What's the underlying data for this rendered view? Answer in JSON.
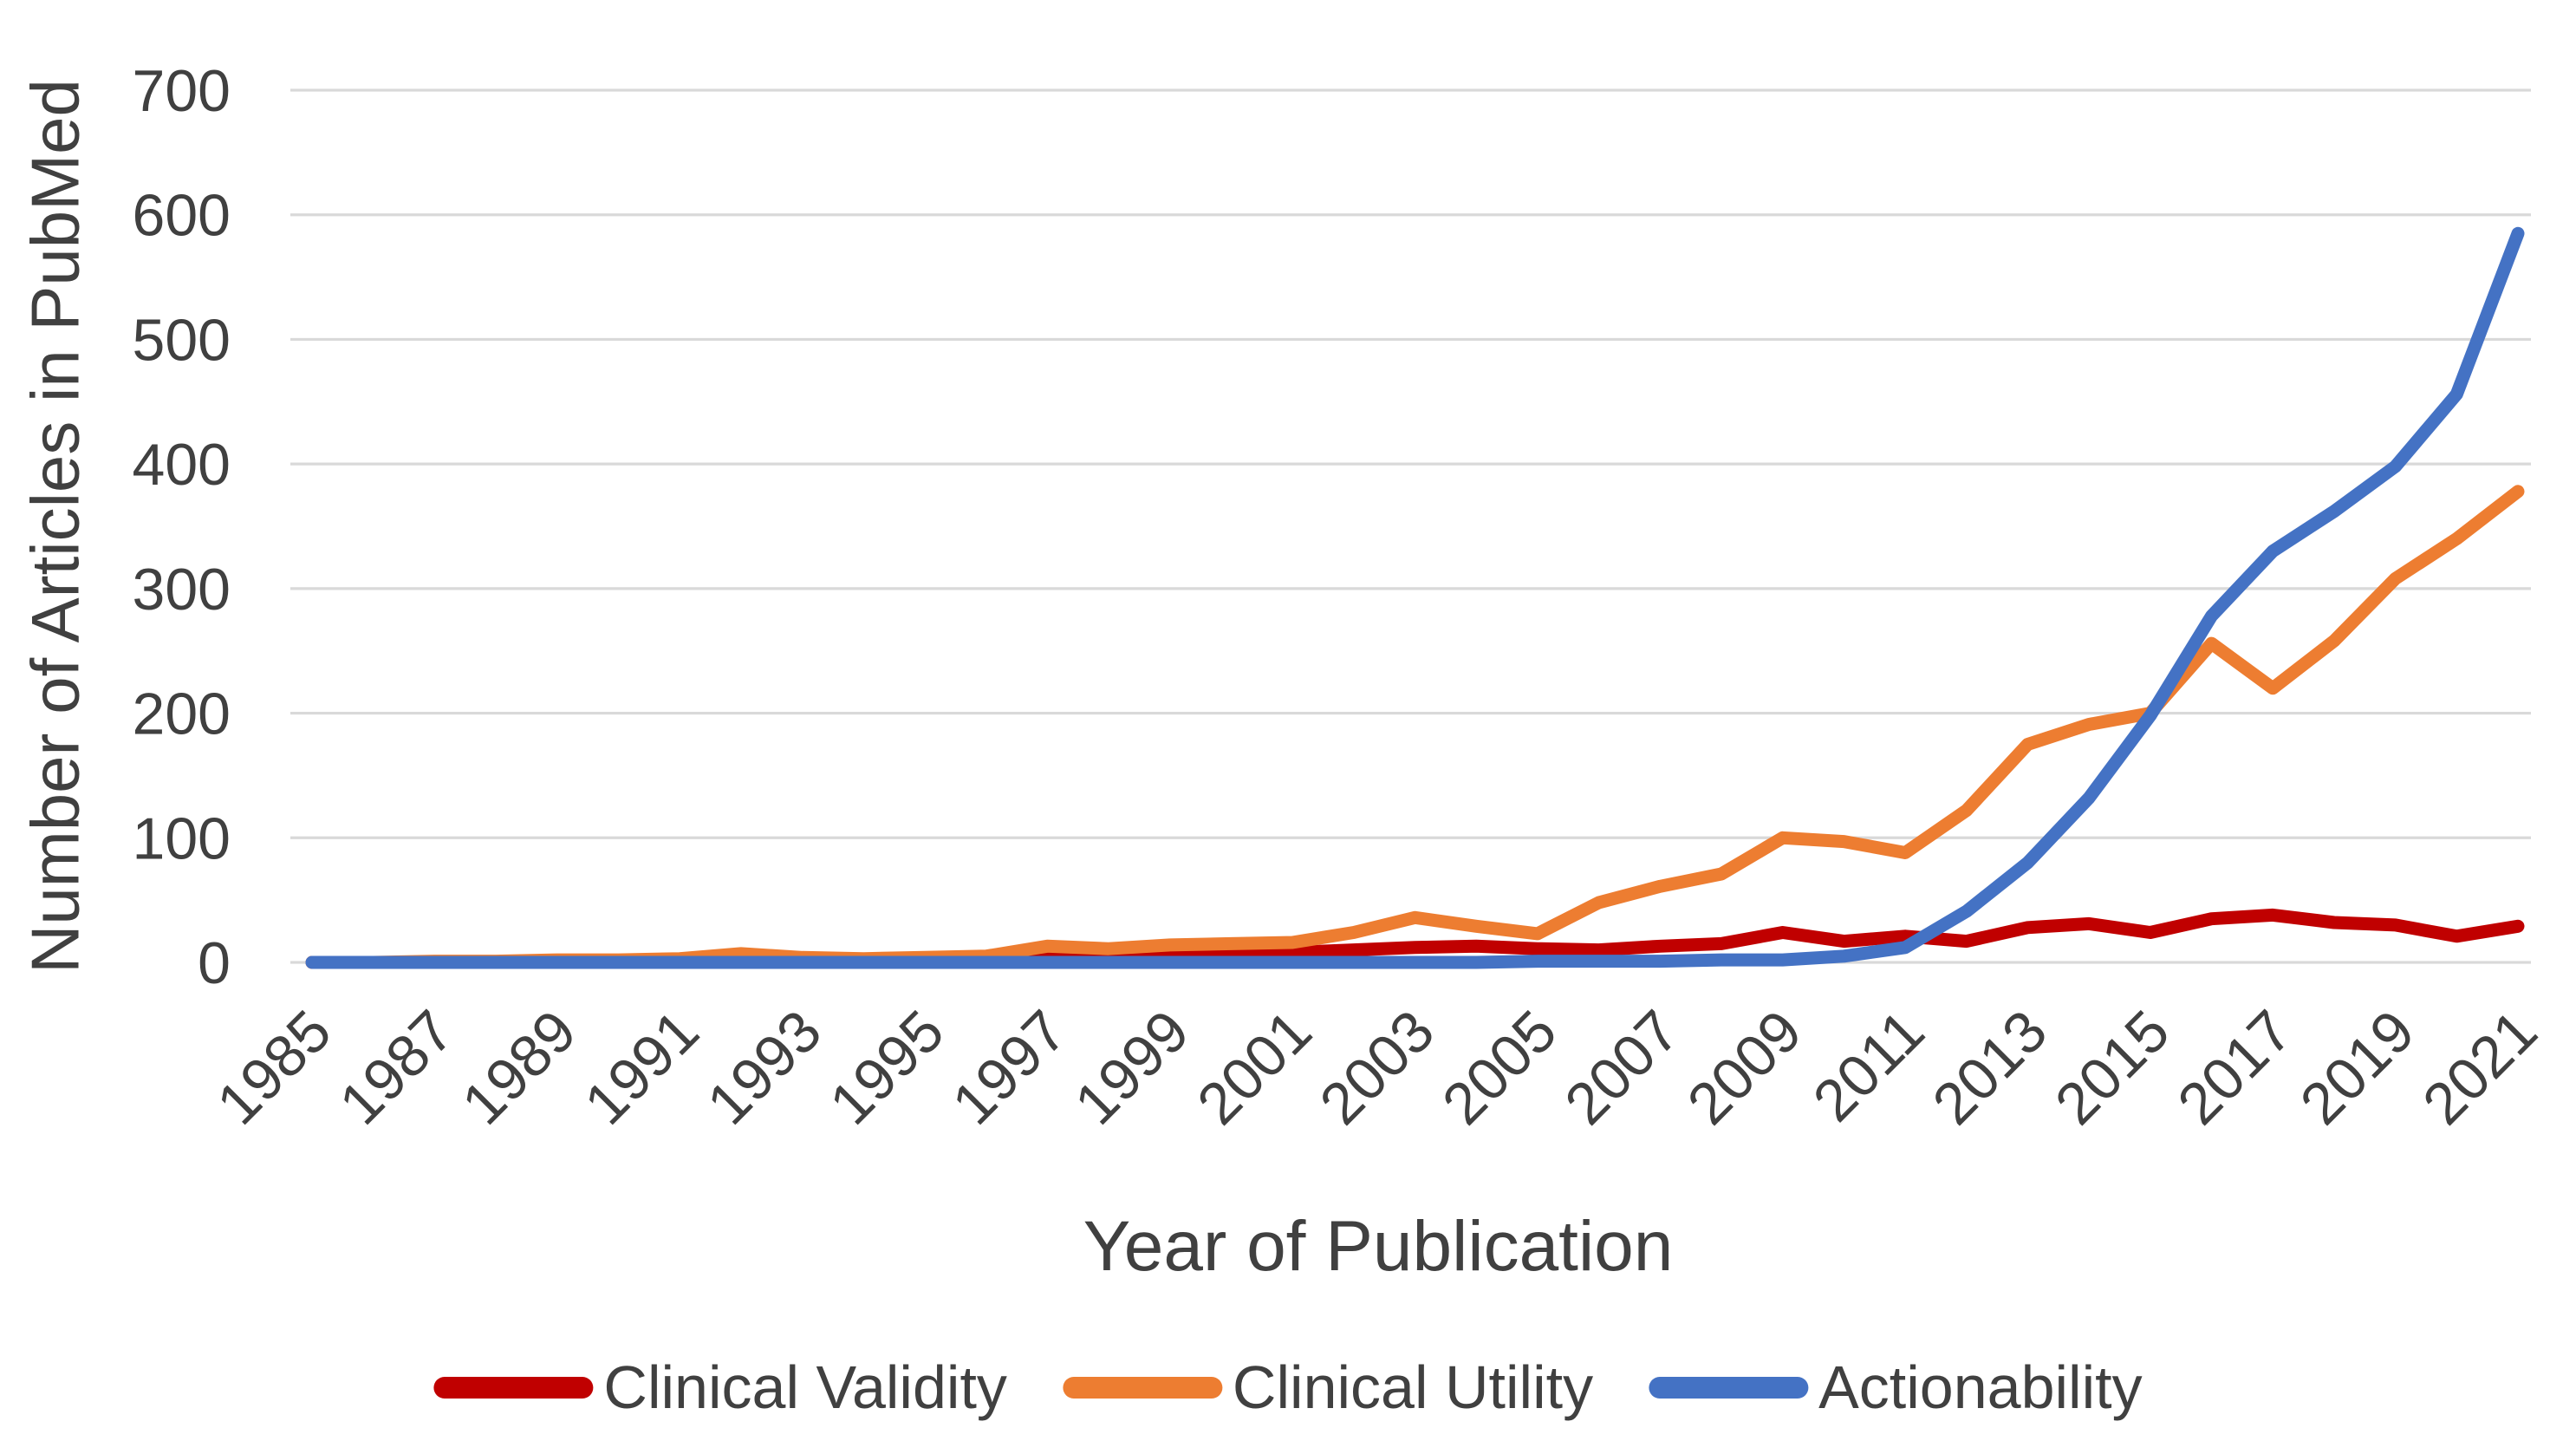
{
  "chart_data": {
    "type": "line",
    "title": "",
    "xlabel": "Year of Publication",
    "ylabel": "Number of Articles in PubMed",
    "x": [
      1985,
      1986,
      1987,
      1988,
      1989,
      1990,
      1991,
      1992,
      1993,
      1994,
      1995,
      1996,
      1997,
      1998,
      1999,
      2000,
      2001,
      2002,
      2003,
      2004,
      2005,
      2006,
      2007,
      2008,
      2009,
      2010,
      2011,
      2012,
      2013,
      2014,
      2015,
      2016,
      2017,
      2018,
      2019,
      2020,
      2021
    ],
    "x_tick_labels": [
      "1985",
      "1987",
      "1989",
      "1991",
      "1993",
      "1995",
      "1997",
      "1999",
      "2001",
      "2003",
      "2005",
      "2007",
      "2009",
      "2011",
      "2013",
      "2015",
      "2017",
      "2019",
      "2021"
    ],
    "y_ticks": [
      0,
      100,
      200,
      300,
      400,
      500,
      600,
      700
    ],
    "ylim": [
      0,
      700
    ],
    "grid": "horizontal-only",
    "legend_position": "bottom-center",
    "gridline_color": "#d9d9d9",
    "tick_label_color": "#404040",
    "series": [
      {
        "name": "Clinical Validity",
        "color": "#c00000",
        "values": [
          0,
          0,
          0,
          0,
          1,
          1,
          1,
          1,
          1,
          1,
          2,
          2,
          3,
          3,
          4,
          5,
          8,
          10,
          12,
          13,
          11,
          10,
          13,
          15,
          24,
          17,
          21,
          17,
          28,
          31,
          24,
          35,
          38,
          32,
          30,
          21,
          29
        ]
      },
      {
        "name": "Clinical Utility",
        "color": "#ed7d31",
        "values": [
          0,
          0,
          1,
          1,
          2,
          2,
          3,
          7,
          4,
          3,
          4,
          5,
          13,
          11,
          14,
          15,
          16,
          24,
          36,
          29,
          23,
          48,
          61,
          71,
          100,
          97,
          88,
          122,
          175,
          191,
          200,
          256,
          220,
          258,
          308,
          340,
          378
        ]
      },
      {
        "name": "Actionability",
        "color": "#4472c4",
        "values": [
          0,
          0,
          0,
          0,
          0,
          0,
          0,
          0,
          0,
          0,
          0,
          0,
          0,
          0,
          0,
          0,
          0,
          0,
          0,
          0,
          1,
          1,
          1,
          2,
          2,
          5,
          12,
          41,
          80,
          132,
          198,
          278,
          330,
          362,
          398,
          456,
          585
        ]
      }
    ]
  }
}
